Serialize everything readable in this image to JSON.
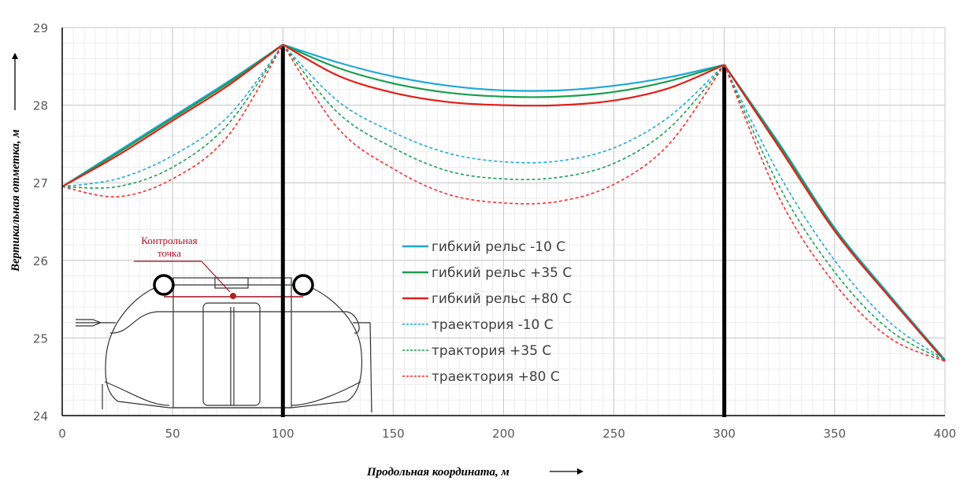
{
  "chart_data": {
    "type": "line",
    "title": "",
    "xlabel": "Продольная координата, м",
    "ylabel": "Вертикальная отметка, м",
    "xlim": [
      0,
      400
    ],
    "ylim": [
      24,
      29
    ],
    "x_ticks": [
      "0",
      "50",
      "100",
      "150",
      "200",
      "250",
      "300",
      "350",
      "400"
    ],
    "y_ticks": [
      "24",
      "25",
      "26",
      "27",
      "28",
      "29"
    ],
    "grid": true,
    "legend_position": "center",
    "x": [
      0,
      25,
      50,
      75,
      100,
      125,
      150,
      175,
      200,
      225,
      250,
      275,
      300,
      325,
      350,
      375,
      400
    ],
    "series": [
      {
        "name": "гибкий рельс -10 С",
        "color": "#1fa8d8",
        "dashed": false,
        "values": [
          26.95,
          27.4,
          27.85,
          28.3,
          28.78,
          28.55,
          28.37,
          28.25,
          28.19,
          28.19,
          28.25,
          28.36,
          28.52,
          27.5,
          26.42,
          25.55,
          24.72
        ]
      },
      {
        "name": "гибкий рельс +35 С",
        "color": "#1a9e50",
        "dashed": false,
        "values": [
          26.95,
          27.38,
          27.83,
          28.28,
          28.78,
          28.48,
          28.28,
          28.16,
          28.11,
          28.11,
          28.17,
          28.31,
          28.52,
          27.48,
          26.4,
          25.53,
          24.71
        ]
      },
      {
        "name": "гибкий рельс +80 С",
        "color": "#e0201a",
        "dashed": false,
        "values": [
          26.95,
          27.35,
          27.8,
          28.25,
          28.78,
          28.38,
          28.16,
          28.04,
          28.0,
          28.0,
          28.06,
          28.22,
          28.52,
          27.45,
          26.38,
          25.52,
          24.7
        ]
      },
      {
        "name": "траектория -10 С",
        "color": "#1fa8d8",
        "dashed": true,
        "values": [
          26.95,
          27.05,
          27.35,
          27.85,
          28.78,
          28.05,
          27.65,
          27.38,
          27.27,
          27.28,
          27.45,
          27.85,
          28.52,
          27.1,
          26.0,
          25.2,
          24.72
        ]
      },
      {
        "name": "трактория +35 С",
        "color": "#1a9e50",
        "dashed": true,
        "values": [
          26.95,
          26.95,
          27.2,
          27.75,
          28.78,
          27.9,
          27.45,
          27.15,
          27.05,
          27.07,
          27.25,
          27.7,
          28.52,
          26.95,
          25.85,
          25.1,
          24.71
        ]
      },
      {
        "name": "траектория +80 С",
        "color": "#ff2a2a",
        "dashed": true,
        "values": [
          26.95,
          26.82,
          27.05,
          27.6,
          28.78,
          27.7,
          27.18,
          26.85,
          26.74,
          26.76,
          26.98,
          27.5,
          28.52,
          26.8,
          25.7,
          25.0,
          24.7
        ]
      }
    ],
    "supports_x": [
      100,
      300
    ],
    "annotation": {
      "line1": "Контрольная",
      "line2": "точка"
    }
  }
}
